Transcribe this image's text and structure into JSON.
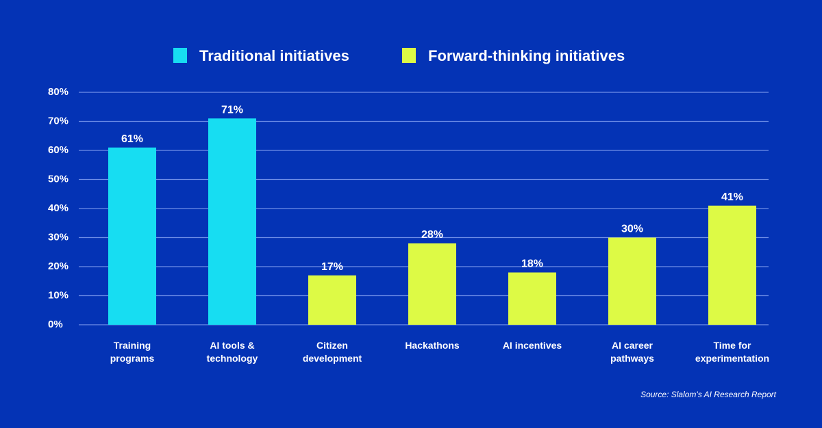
{
  "colors": {
    "background": "#0433B5",
    "traditional": "#17DDF2",
    "forward": "#DDFA45",
    "gridline": "#6F8FE8",
    "text": "#FFFFFF"
  },
  "legend": [
    {
      "label": "Traditional initiatives",
      "color_key": "traditional"
    },
    {
      "label": "Forward-thinking initiatives",
      "color_key": "forward"
    }
  ],
  "source": "Source: Slalom's AI Research Report",
  "chart_data": {
    "type": "bar",
    "categories": [
      [
        "Training",
        "programs"
      ],
      [
        "AI tools &",
        "technology"
      ],
      [
        "Citizen",
        "development"
      ],
      [
        "Hackathons"
      ],
      [
        "AI incentives"
      ],
      [
        "AI career",
        "pathways"
      ],
      [
        "Time for",
        "experimentation"
      ]
    ],
    "values": [
      61,
      71,
      17,
      28,
      18,
      30,
      41
    ],
    "value_labels": [
      "61%",
      "71%",
      "17%",
      "28%",
      "18%",
      "30%",
      "41%"
    ],
    "series_index": [
      0,
      0,
      1,
      1,
      1,
      1,
      1
    ],
    "series": [
      {
        "name": "Traditional initiatives"
      },
      {
        "name": "Forward-thinking initiatives"
      }
    ],
    "yticks": [
      0,
      10,
      20,
      30,
      40,
      50,
      60,
      70,
      80
    ],
    "ytick_labels": [
      "0%",
      "10%",
      "20%",
      "30%",
      "40%",
      "50%",
      "60%",
      "70%",
      "80%"
    ],
    "ylim": [
      0,
      80
    ],
    "grid": true,
    "legend_position": "top-center"
  }
}
